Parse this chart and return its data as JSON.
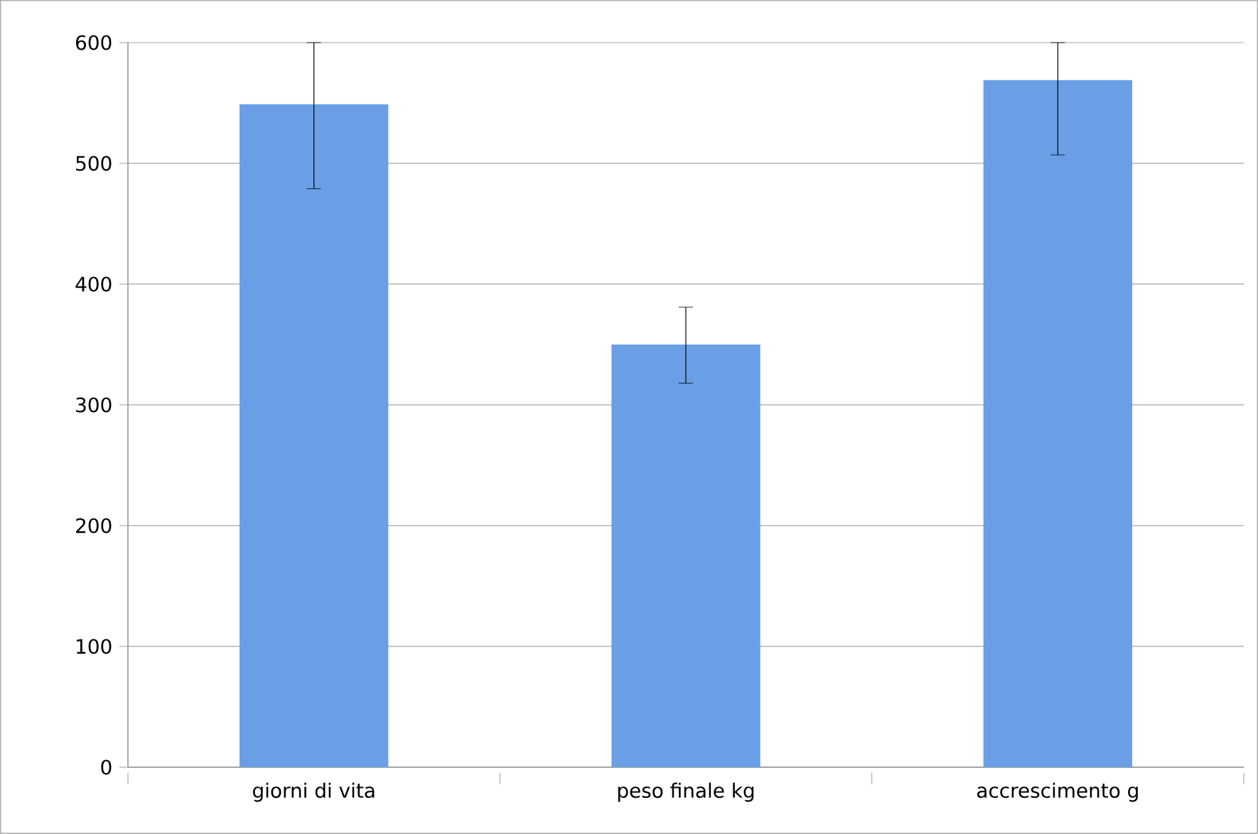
{
  "chart_data": {
    "type": "bar",
    "categories": [
      "giorni di vita",
      "peso finale kg",
      "accrescimento g"
    ],
    "values": [
      549,
      350,
      569
    ],
    "errors": [
      [
        479,
        600
      ],
      [
        318,
        381
      ],
      [
        507,
        600
      ]
    ],
    "color": "#6a9fe6",
    "ylim": [
      0,
      600
    ],
    "yticks": [
      0,
      100,
      200,
      300,
      400,
      500,
      600
    ],
    "grid": "y"
  }
}
